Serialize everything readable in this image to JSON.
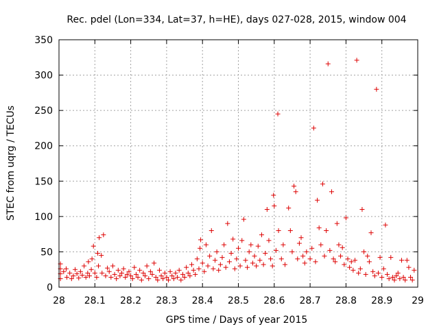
{
  "chart_data": {
    "type": "scatter",
    "title": "Rec. pdel (Lon=334, Lat=37, h=HE), days 027-028, 2015, window 004",
    "xlabel": "GPS time / Days of year 2015",
    "ylabel": "STEC from uqrg / TECUs",
    "xlim": [
      28,
      29
    ],
    "ylim": [
      0,
      350
    ],
    "x_ticks": [
      28,
      28.1,
      28.2,
      28.3,
      28.4,
      28.5,
      28.6,
      28.7,
      28.8,
      28.9,
      29
    ],
    "x_tick_labels": [
      "28",
      "28.1",
      "28.2",
      "28.3",
      "28.4",
      "28.5",
      "28.6",
      "28.7",
      "28.8",
      "28.9",
      "29"
    ],
    "y_ticks": [
      0,
      50,
      100,
      150,
      200,
      250,
      300,
      350
    ],
    "y_tick_labels": [
      "0",
      "50",
      "100",
      "150",
      "200",
      "250",
      "300",
      "350"
    ],
    "grid": true,
    "marker": "+",
    "color": "#dd0000",
    "series": [
      {
        "name": "STEC",
        "points": [
          [
            28.004,
            33
          ],
          [
            28.004,
            26
          ],
          [
            28.004,
            19
          ],
          [
            28.004,
            12
          ],
          [
            28.013,
            22
          ],
          [
            28.02,
            26
          ],
          [
            28.022,
            14
          ],
          [
            28.03,
            20
          ],
          [
            28.035,
            12
          ],
          [
            28.04,
            16
          ],
          [
            28.045,
            25
          ],
          [
            28.05,
            19
          ],
          [
            28.055,
            13
          ],
          [
            28.06,
            22
          ],
          [
            28.065,
            17
          ],
          [
            28.07,
            30
          ],
          [
            28.075,
            14
          ],
          [
            28.08,
            20
          ],
          [
            28.082,
            36
          ],
          [
            28.085,
            16
          ],
          [
            28.09,
            25
          ],
          [
            28.092,
            40
          ],
          [
            28.096,
            58
          ],
          [
            28.1,
            20
          ],
          [
            28.105,
            14
          ],
          [
            28.108,
            48
          ],
          [
            28.11,
            30
          ],
          [
            28.112,
            70
          ],
          [
            28.118,
            45
          ],
          [
            28.12,
            20
          ],
          [
            28.124,
            74
          ],
          [
            28.13,
            16
          ],
          [
            28.135,
            27
          ],
          [
            28.14,
            22
          ],
          [
            28.145,
            14
          ],
          [
            28.15,
            30
          ],
          [
            28.155,
            18
          ],
          [
            28.16,
            12
          ],
          [
            28.165,
            24
          ],
          [
            28.17,
            16
          ],
          [
            28.175,
            20
          ],
          [
            28.18,
            26
          ],
          [
            28.185,
            14
          ],
          [
            28.19,
            18
          ],
          [
            28.195,
            22
          ],
          [
            28.2,
            16
          ],
          [
            28.205,
            12
          ],
          [
            28.21,
            28
          ],
          [
            28.215,
            18
          ],
          [
            28.22,
            14
          ],
          [
            28.225,
            24
          ],
          [
            28.23,
            10
          ],
          [
            28.235,
            20
          ],
          [
            28.24,
            16
          ],
          [
            28.245,
            30
          ],
          [
            28.25,
            12
          ],
          [
            28.255,
            22
          ],
          [
            28.26,
            18
          ],
          [
            28.265,
            34
          ],
          [
            28.27,
            14
          ],
          [
            28.275,
            10
          ],
          [
            28.28,
            24
          ],
          [
            28.285,
            16
          ],
          [
            28.29,
            12
          ],
          [
            28.295,
            20
          ],
          [
            28.3,
            14
          ],
          [
            28.305,
            10
          ],
          [
            28.31,
            22
          ],
          [
            28.315,
            16
          ],
          [
            28.32,
            12
          ],
          [
            28.325,
            20
          ],
          [
            28.33,
            14
          ],
          [
            28.335,
            24
          ],
          [
            28.34,
            10
          ],
          [
            28.345,
            18
          ],
          [
            28.35,
            14
          ],
          [
            28.355,
            28
          ],
          [
            28.36,
            20
          ],
          [
            28.365,
            16
          ],
          [
            28.37,
            32
          ],
          [
            28.375,
            24
          ],
          [
            28.38,
            18
          ],
          [
            28.385,
            40
          ],
          [
            28.39,
            26
          ],
          [
            28.393,
            55
          ],
          [
            28.395,
            67
          ],
          [
            28.4,
            34
          ],
          [
            28.405,
            22
          ],
          [
            28.41,
            60
          ],
          [
            28.415,
            30
          ],
          [
            28.42,
            44
          ],
          [
            28.425,
            80
          ],
          [
            28.43,
            26
          ],
          [
            28.435,
            38
          ],
          [
            28.44,
            50
          ],
          [
            28.445,
            24
          ],
          [
            28.45,
            32
          ],
          [
            28.455,
            42
          ],
          [
            28.46,
            60
          ],
          [
            28.465,
            28
          ],
          [
            28.47,
            90
          ],
          [
            28.475,
            36
          ],
          [
            28.48,
            48
          ],
          [
            28.485,
            68
          ],
          [
            28.49,
            26
          ],
          [
            28.495,
            40
          ],
          [
            28.5,
            55
          ],
          [
            28.505,
            30
          ],
          [
            28.51,
            66
          ],
          [
            28.515,
            96
          ],
          [
            28.52,
            38
          ],
          [
            28.525,
            28
          ],
          [
            28.53,
            50
          ],
          [
            28.535,
            60
          ],
          [
            28.54,
            34
          ],
          [
            28.545,
            44
          ],
          [
            28.55,
            30
          ],
          [
            28.555,
            58
          ],
          [
            28.56,
            38
          ],
          [
            28.565,
            74
          ],
          [
            28.57,
            32
          ],
          [
            28.575,
            48
          ],
          [
            28.58,
            110
          ],
          [
            28.585,
            66
          ],
          [
            28.59,
            40
          ],
          [
            28.595,
            30
          ],
          [
            28.598,
            130
          ],
          [
            28.6,
            115
          ],
          [
            28.605,
            52
          ],
          [
            28.61,
            245
          ],
          [
            28.612,
            80
          ],
          [
            28.62,
            40
          ],
          [
            28.625,
            60
          ],
          [
            28.63,
            32
          ],
          [
            28.64,
            112
          ],
          [
            28.645,
            80
          ],
          [
            28.65,
            50
          ],
          [
            28.655,
            143
          ],
          [
            28.66,
            135
          ],
          [
            28.665,
            40
          ],
          [
            28.67,
            62
          ],
          [
            28.675,
            70
          ],
          [
            28.68,
            44
          ],
          [
            28.685,
            34
          ],
          [
            28.69,
            50
          ],
          [
            28.7,
            40
          ],
          [
            28.705,
            55
          ],
          [
            28.71,
            225
          ],
          [
            28.715,
            36
          ],
          [
            28.72,
            123
          ],
          [
            28.725,
            84
          ],
          [
            28.73,
            60
          ],
          [
            28.735,
            146
          ],
          [
            28.74,
            44
          ],
          [
            28.745,
            80
          ],
          [
            28.75,
            316
          ],
          [
            28.755,
            52
          ],
          [
            28.76,
            135
          ],
          [
            28.765,
            40
          ],
          [
            28.77,
            36
          ],
          [
            28.775,
            90
          ],
          [
            28.78,
            60
          ],
          [
            28.785,
            44
          ],
          [
            28.79,
            56
          ],
          [
            28.795,
            32
          ],
          [
            28.8,
            98
          ],
          [
            28.805,
            40
          ],
          [
            28.81,
            28
          ],
          [
            28.815,
            36
          ],
          [
            28.82,
            24
          ],
          [
            28.825,
            38
          ],
          [
            28.83,
            321
          ],
          [
            28.835,
            20
          ],
          [
            28.84,
            26
          ],
          [
            28.845,
            110
          ],
          [
            28.85,
            50
          ],
          [
            28.855,
            18
          ],
          [
            28.86,
            44
          ],
          [
            28.865,
            36
          ],
          [
            28.87,
            77
          ],
          [
            28.875,
            22
          ],
          [
            28.88,
            16
          ],
          [
            28.885,
            280
          ],
          [
            28.89,
            20
          ],
          [
            28.895,
            42
          ],
          [
            28.9,
            14
          ],
          [
            28.905,
            26
          ],
          [
            28.91,
            88
          ],
          [
            28.915,
            18
          ],
          [
            28.92,
            12
          ],
          [
            28.925,
            42
          ],
          [
            28.93,
            14
          ],
          [
            28.935,
            10
          ],
          [
            28.94,
            16
          ],
          [
            28.945,
            20
          ],
          [
            28.95,
            12
          ],
          [
            28.955,
            38
          ],
          [
            28.96,
            14
          ],
          [
            28.965,
            10
          ],
          [
            28.97,
            38
          ],
          [
            28.975,
            28
          ],
          [
            28.98,
            14
          ],
          [
            28.985,
            10
          ],
          [
            28.99,
            24
          ]
        ]
      }
    ]
  }
}
